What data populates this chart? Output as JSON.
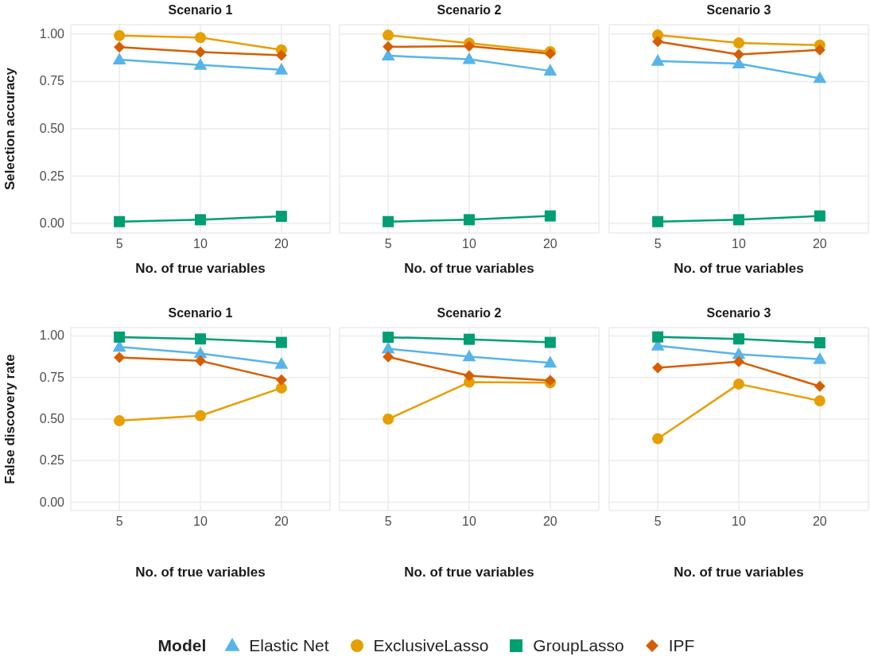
{
  "chart_data": [
    {
      "type": "line",
      "title": "Scenario 1",
      "xlabel": "No. of true variables",
      "ylabel": "Selection accuracy",
      "categories": [
        "5",
        "10",
        "20"
      ],
      "ylim": [
        -0.05,
        1.05
      ],
      "yticks": [
        {
          "value": 0,
          "label": "0.00"
        },
        {
          "value": 0.25,
          "label": "0.25"
        },
        {
          "value": 0.5,
          "label": "0.50"
        },
        {
          "value": 0.75,
          "label": "0.75"
        },
        {
          "value": 1,
          "label": "1.00"
        }
      ],
      "grid": true,
      "series": [
        {
          "color": "#56b4e9",
          "marker": "triangle",
          "values": [
            0.865,
            0.837,
            0.812
          ]
        },
        {
          "color": "#e69f00",
          "marker": "circle",
          "values": [
            0.992,
            0.982,
            0.917
          ]
        },
        {
          "color": "#009e73",
          "marker": "square",
          "values": [
            0.01,
            0.02,
            0.038
          ]
        },
        {
          "color": "#d55e00",
          "marker": "diamond",
          "values": [
            0.931,
            0.905,
            0.888
          ]
        }
      ]
    },
    {
      "type": "line",
      "title": "Scenario 2",
      "xlabel": "No. of true variables",
      "categories": [
        "5",
        "10",
        "20"
      ],
      "ylim": [
        -0.05,
        1.05
      ],
      "yticks": [
        {
          "value": 0,
          "label": null
        },
        {
          "value": 0.25,
          "label": null
        },
        {
          "value": 0.5,
          "label": null
        },
        {
          "value": 0.75,
          "label": null
        },
        {
          "value": 1,
          "label": null
        }
      ],
      "tick_labels": "x",
      "grid": true,
      "series": [
        {
          "color": "#56b4e9",
          "marker": "triangle",
          "values": [
            0.886,
            0.867,
            0.806
          ]
        },
        {
          "color": "#e69f00",
          "marker": "circle",
          "values": [
            0.994,
            0.952,
            0.907
          ]
        },
        {
          "color": "#009e73",
          "marker": "square",
          "values": [
            0.01,
            0.02,
            0.04
          ]
        },
        {
          "color": "#d55e00",
          "marker": "diamond",
          "values": [
            0.933,
            0.937,
            0.897
          ]
        }
      ]
    },
    {
      "type": "line",
      "title": "Scenario 3",
      "xlabel": "No. of true variables",
      "categories": [
        "5",
        "10",
        "20"
      ],
      "ylim": [
        -0.05,
        1.05
      ],
      "yticks": [
        {
          "value": 0,
          "label": null
        },
        {
          "value": 0.25,
          "label": null
        },
        {
          "value": 0.5,
          "label": null
        },
        {
          "value": 0.75,
          "label": null
        },
        {
          "value": 1,
          "label": null
        }
      ],
      "tick_labels": "x",
      "grid": true,
      "series": [
        {
          "color": "#56b4e9",
          "marker": "triangle",
          "values": [
            0.858,
            0.844,
            0.767
          ]
        },
        {
          "color": "#e69f00",
          "marker": "circle",
          "values": [
            0.995,
            0.953,
            0.942
          ]
        },
        {
          "color": "#009e73",
          "marker": "square",
          "values": [
            0.01,
            0.02,
            0.04
          ]
        },
        {
          "color": "#d55e00",
          "marker": "diamond",
          "values": [
            0.961,
            0.893,
            0.917
          ]
        }
      ]
    },
    {
      "type": "line",
      "title": "Scenario 1",
      "xlabel": "No. of true variables",
      "ylabel": "False discovery rate",
      "categories": [
        "5",
        "10",
        "20"
      ],
      "ylim": [
        -0.05,
        1.05
      ],
      "yticks": [
        {
          "value": 0,
          "label": "0.00"
        },
        {
          "value": 0.25,
          "label": "0.25"
        },
        {
          "value": 0.5,
          "label": "0.50"
        },
        {
          "value": 0.75,
          "label": "0.75"
        },
        {
          "value": 1,
          "label": "1.00"
        }
      ],
      "grid": true,
      "series": [
        {
          "color": "#56b4e9",
          "marker": "triangle",
          "values": [
            0.934,
            0.895,
            0.831
          ]
        },
        {
          "color": "#e69f00",
          "marker": "circle",
          "values": [
            0.49,
            0.52,
            0.687
          ]
        },
        {
          "color": "#009e73",
          "marker": "square",
          "values": [
            0.993,
            0.982,
            0.961
          ]
        },
        {
          "color": "#d55e00",
          "marker": "diamond",
          "values": [
            0.871,
            0.85,
            0.736
          ]
        }
      ]
    },
    {
      "type": "line",
      "title": "Scenario 2",
      "xlabel": "No. of true variables",
      "categories": [
        "5",
        "10",
        "20"
      ],
      "ylim": [
        -0.05,
        1.05
      ],
      "yticks": [
        {
          "value": 0,
          "label": null
        },
        {
          "value": 0.25,
          "label": null
        },
        {
          "value": 0.5,
          "label": null
        },
        {
          "value": 0.75,
          "label": null
        },
        {
          "value": 1,
          "label": null
        }
      ],
      "tick_labels": "x",
      "grid": true,
      "series": [
        {
          "color": "#56b4e9",
          "marker": "triangle",
          "values": [
            0.923,
            0.876,
            0.838
          ]
        },
        {
          "color": "#e69f00",
          "marker": "circle",
          "values": [
            0.5,
            0.722,
            0.719
          ]
        },
        {
          "color": "#009e73",
          "marker": "square",
          "values": [
            0.992,
            0.98,
            0.961
          ]
        },
        {
          "color": "#d55e00",
          "marker": "diamond",
          "values": [
            0.874,
            0.761,
            0.732
          ]
        }
      ]
    },
    {
      "type": "line",
      "title": "Scenario 3",
      "xlabel": "No. of true variables",
      "categories": [
        "5",
        "10",
        "20"
      ],
      "ylim": [
        -0.05,
        1.05
      ],
      "yticks": [
        {
          "value": 0,
          "label": null
        },
        {
          "value": 0.25,
          "label": null
        },
        {
          "value": 0.5,
          "label": null
        },
        {
          "value": 0.75,
          "label": null
        },
        {
          "value": 1,
          "label": null
        }
      ],
      "tick_labels": "x",
      "grid": true,
      "legend": "bottom",
      "legend_title": "Model",
      "series": [
        {
          "name": "Elastic Net",
          "color": "#56b4e9",
          "marker": "triangle",
          "values": [
            0.941,
            0.89,
            0.86
          ]
        },
        {
          "name": "ExclusiveLasso",
          "color": "#e69f00",
          "marker": "circle",
          "values": [
            0.382,
            0.711,
            0.61
          ]
        },
        {
          "name": "GroupLasso",
          "color": "#009e73",
          "marker": "square",
          "values": [
            0.994,
            0.982,
            0.959
          ]
        },
        {
          "name": "IPF",
          "color": "#d55e00",
          "marker": "diamond",
          "values": [
            0.808,
            0.846,
            0.697
          ]
        }
      ]
    }
  ]
}
